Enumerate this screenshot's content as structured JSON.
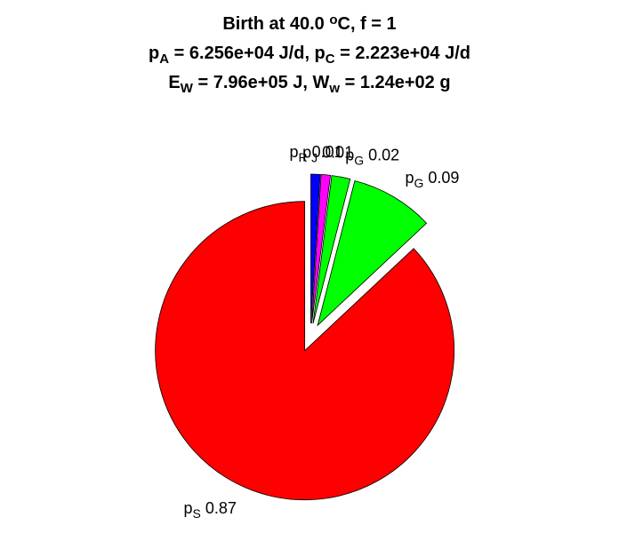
{
  "chart_data": {
    "type": "pie",
    "title": [
      [
        {
          "text": "Birth at 40.0 "
        },
        {
          "text": "o",
          "script": "sup"
        },
        {
          "text": "C, f = 1"
        }
      ],
      [
        {
          "text": "p"
        },
        {
          "text": "A",
          "script": "sub"
        },
        {
          "text": " = 6.256e+04 J/d, p"
        },
        {
          "text": "C",
          "script": "sub"
        },
        {
          "text": " = 2.223e+04 J/d"
        }
      ],
      [
        {
          "text": "E"
        },
        {
          "text": "W",
          "script": "sub"
        },
        {
          "text": " = 7.96e+05 J, W"
        },
        {
          "text": "w",
          "script": "sub"
        },
        {
          "text": " = 1.24e+02 g"
        }
      ]
    ],
    "categories": [
      {
        "symbol": "p",
        "subscript": "R"
      },
      {
        "symbol": "p",
        "subscript": "J"
      },
      {
        "symbol": "p",
        "subscript": "G"
      },
      {
        "symbol": "p",
        "subscript": "G"
      },
      {
        "symbol": "p",
        "subscript": "S"
      }
    ],
    "values": [
      0.01,
      0.01,
      0.02,
      0.09,
      0.87
    ],
    "colors": [
      "#0000ff",
      "#ff00ff",
      "#00ff00",
      "#00ff00",
      "#ff0000"
    ],
    "exploded": true
  }
}
